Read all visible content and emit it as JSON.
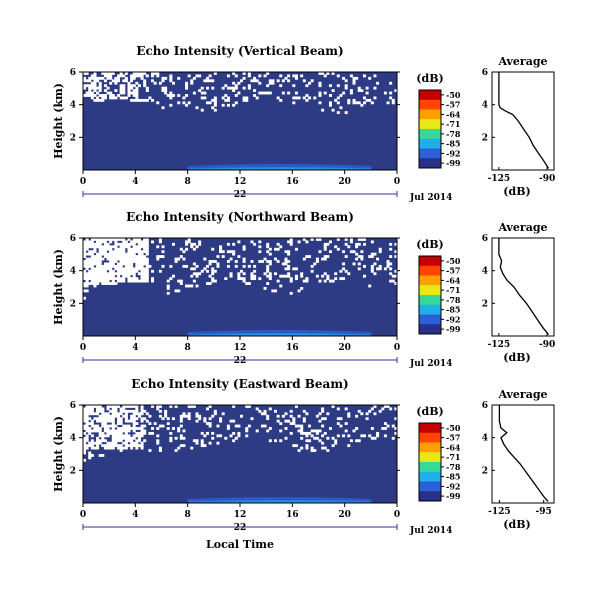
{
  "chart_data": [
    {
      "type": "heatmap",
      "title": "Echo Intensity (Vertical Beam)",
      "ylabel": "Height (km)",
      "y_ticks": [
        "6",
        "4",
        "2"
      ],
      "x_ticks": [
        "0",
        "4",
        "8",
        "12",
        "16",
        "20",
        "0"
      ],
      "xlim": [
        0,
        24
      ],
      "ylim": [
        0,
        6
      ],
      "date_day": "22",
      "date_label": "Jul 2014",
      "colorbar": {
        "unit": "(dB)",
        "labels": [
          "-50",
          "-57",
          "-64",
          "-71",
          "-78",
          "-85",
          "-92",
          "-99"
        ]
      },
      "missing_regions": "white speckle above ~3.5-4 km through the day",
      "average_profile": {
        "title": "Average",
        "xlabel": "(dB)",
        "x_ticks": [
          "-125",
          "-90"
        ],
        "y_ticks": [
          "6",
          "4",
          "2"
        ],
        "xlim": [
          -130,
          -85
        ],
        "ylim": [
          0,
          6
        ],
        "points": [
          [
            -89,
            0.1
          ],
          [
            -92,
            0.5
          ],
          [
            -96,
            1.0
          ],
          [
            -100,
            1.5
          ],
          [
            -103,
            2.0
          ],
          [
            -107,
            2.5
          ],
          [
            -111,
            3.0
          ],
          [
            -115,
            3.4
          ],
          [
            -120,
            3.6
          ],
          [
            -124,
            3.8
          ],
          [
            -125,
            4.0
          ],
          [
            -125,
            5.0
          ],
          [
            -125,
            6.0
          ]
        ]
      }
    },
    {
      "type": "heatmap",
      "title": "Echo Intensity (Northward Beam)",
      "ylabel": "Height (km)",
      "y_ticks": [
        "6",
        "4",
        "2"
      ],
      "x_ticks": [
        "0",
        "4",
        "8",
        "12",
        "16",
        "20",
        "0"
      ],
      "xlim": [
        0,
        24
      ],
      "ylim": [
        0,
        6
      ],
      "date_day": "22",
      "date_label": "Jul 2014",
      "colorbar": {
        "unit": "(dB)",
        "labels": [
          "-50",
          "-57",
          "-64",
          "-71",
          "-78",
          "-85",
          "-92",
          "-99"
        ]
      },
      "missing_regions": "large white area in upper left, speckle above ~3 km",
      "average_profile": {
        "title": "Average",
        "xlabel": "(dB)",
        "x_ticks": [
          "-125",
          "-90"
        ],
        "y_ticks": [
          "6",
          "4",
          "2"
        ],
        "xlim": [
          -130,
          -85
        ],
        "ylim": [
          0,
          6
        ],
        "points": [
          [
            -89,
            0.1
          ],
          [
            -93,
            0.5
          ],
          [
            -97,
            1.0
          ],
          [
            -101,
            1.5
          ],
          [
            -105,
            2.0
          ],
          [
            -110,
            2.5
          ],
          [
            -114,
            3.0
          ],
          [
            -119,
            3.4
          ],
          [
            -122,
            3.8
          ],
          [
            -124,
            4.2
          ],
          [
            -123,
            4.6
          ],
          [
            -125,
            5.0
          ],
          [
            -125,
            6.0
          ]
        ]
      }
    },
    {
      "type": "heatmap",
      "title": "Echo Intensity (Eastward Beam)",
      "ylabel": "Height (km)",
      "y_ticks": [
        "6",
        "4",
        "2"
      ],
      "x_ticks": [
        "0",
        "4",
        "8",
        "12",
        "16",
        "20",
        "0"
      ],
      "xlim": [
        0,
        24
      ],
      "ylim": [
        0,
        6
      ],
      "date_day": "22",
      "date_label": "Jul 2014",
      "xlabel": "Local Time",
      "colorbar": {
        "unit": "(dB)",
        "labels": [
          "-50",
          "-57",
          "-64",
          "-71",
          "-78",
          "-85",
          "-92",
          "-99"
        ]
      },
      "missing_regions": "white area in upper left, speckle above ~3.5 km",
      "average_profile": {
        "title": "Average",
        "xlabel": "(dB)",
        "x_ticks": [
          "-125",
          "-95"
        ],
        "y_ticks": [
          "6",
          "4",
          "2"
        ],
        "xlim": [
          -130,
          -88
        ],
        "ylim": [
          0,
          6
        ],
        "points": [
          [
            -92,
            0.1
          ],
          [
            -95,
            0.4
          ],
          [
            -99,
            0.9
          ],
          [
            -103,
            1.4
          ],
          [
            -107,
            1.9
          ],
          [
            -111,
            2.4
          ],
          [
            -115,
            2.8
          ],
          [
            -119,
            3.2
          ],
          [
            -122,
            3.6
          ],
          [
            -124,
            4.0
          ],
          [
            -120,
            4.3
          ],
          [
            -124,
            4.6
          ],
          [
            -125,
            5.0
          ],
          [
            -125,
            6.0
          ]
        ]
      }
    }
  ],
  "colors": {
    "background_field": "#2d3a84",
    "colorbar_stops": [
      "#c40000",
      "#ff4400",
      "#ffa000",
      "#e8e818",
      "#38d898",
      "#20b0e8",
      "#2c60d8",
      "#28308a"
    ],
    "date_rule": "#3030a0"
  }
}
